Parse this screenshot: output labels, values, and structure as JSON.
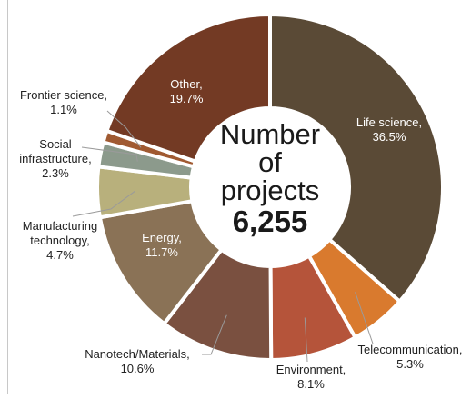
{
  "chart_data": {
    "type": "pie",
    "variant": "donut",
    "slices": [
      {
        "name": "Life science",
        "value": 36.5,
        "label": "36.5%",
        "color": "#5a4a36"
      },
      {
        "name": "Telecommunication",
        "value": 5.3,
        "label": "5.3%",
        "color": "#d97a2e"
      },
      {
        "name": "Environment",
        "value": 8.1,
        "label": "8.1%",
        "color": "#b5543a"
      },
      {
        "name": "Nanotech/Materials",
        "value": 10.6,
        "label": "10.6%",
        "color": "#7a5040"
      },
      {
        "name": "Energy",
        "value": 11.7,
        "label": "11.7%",
        "color": "#8a7256"
      },
      {
        "name": "Manufacturing technology",
        "value": 4.7,
        "label": "4.7%",
        "color": "#b8b07c"
      },
      {
        "name": "Social infrastructure",
        "value": 2.3,
        "label": "2.3%",
        "color": "#8c9a8c"
      },
      {
        "name": "Frontier science",
        "value": 1.1,
        "label": "1.1%",
        "color": "#a05a32"
      },
      {
        "name": "Other",
        "value": 19.7,
        "label": "19.7%",
        "color": "#733a24"
      }
    ],
    "center": {
      "lines": [
        "Number",
        "of",
        "projects"
      ],
      "total": "6,255"
    }
  }
}
